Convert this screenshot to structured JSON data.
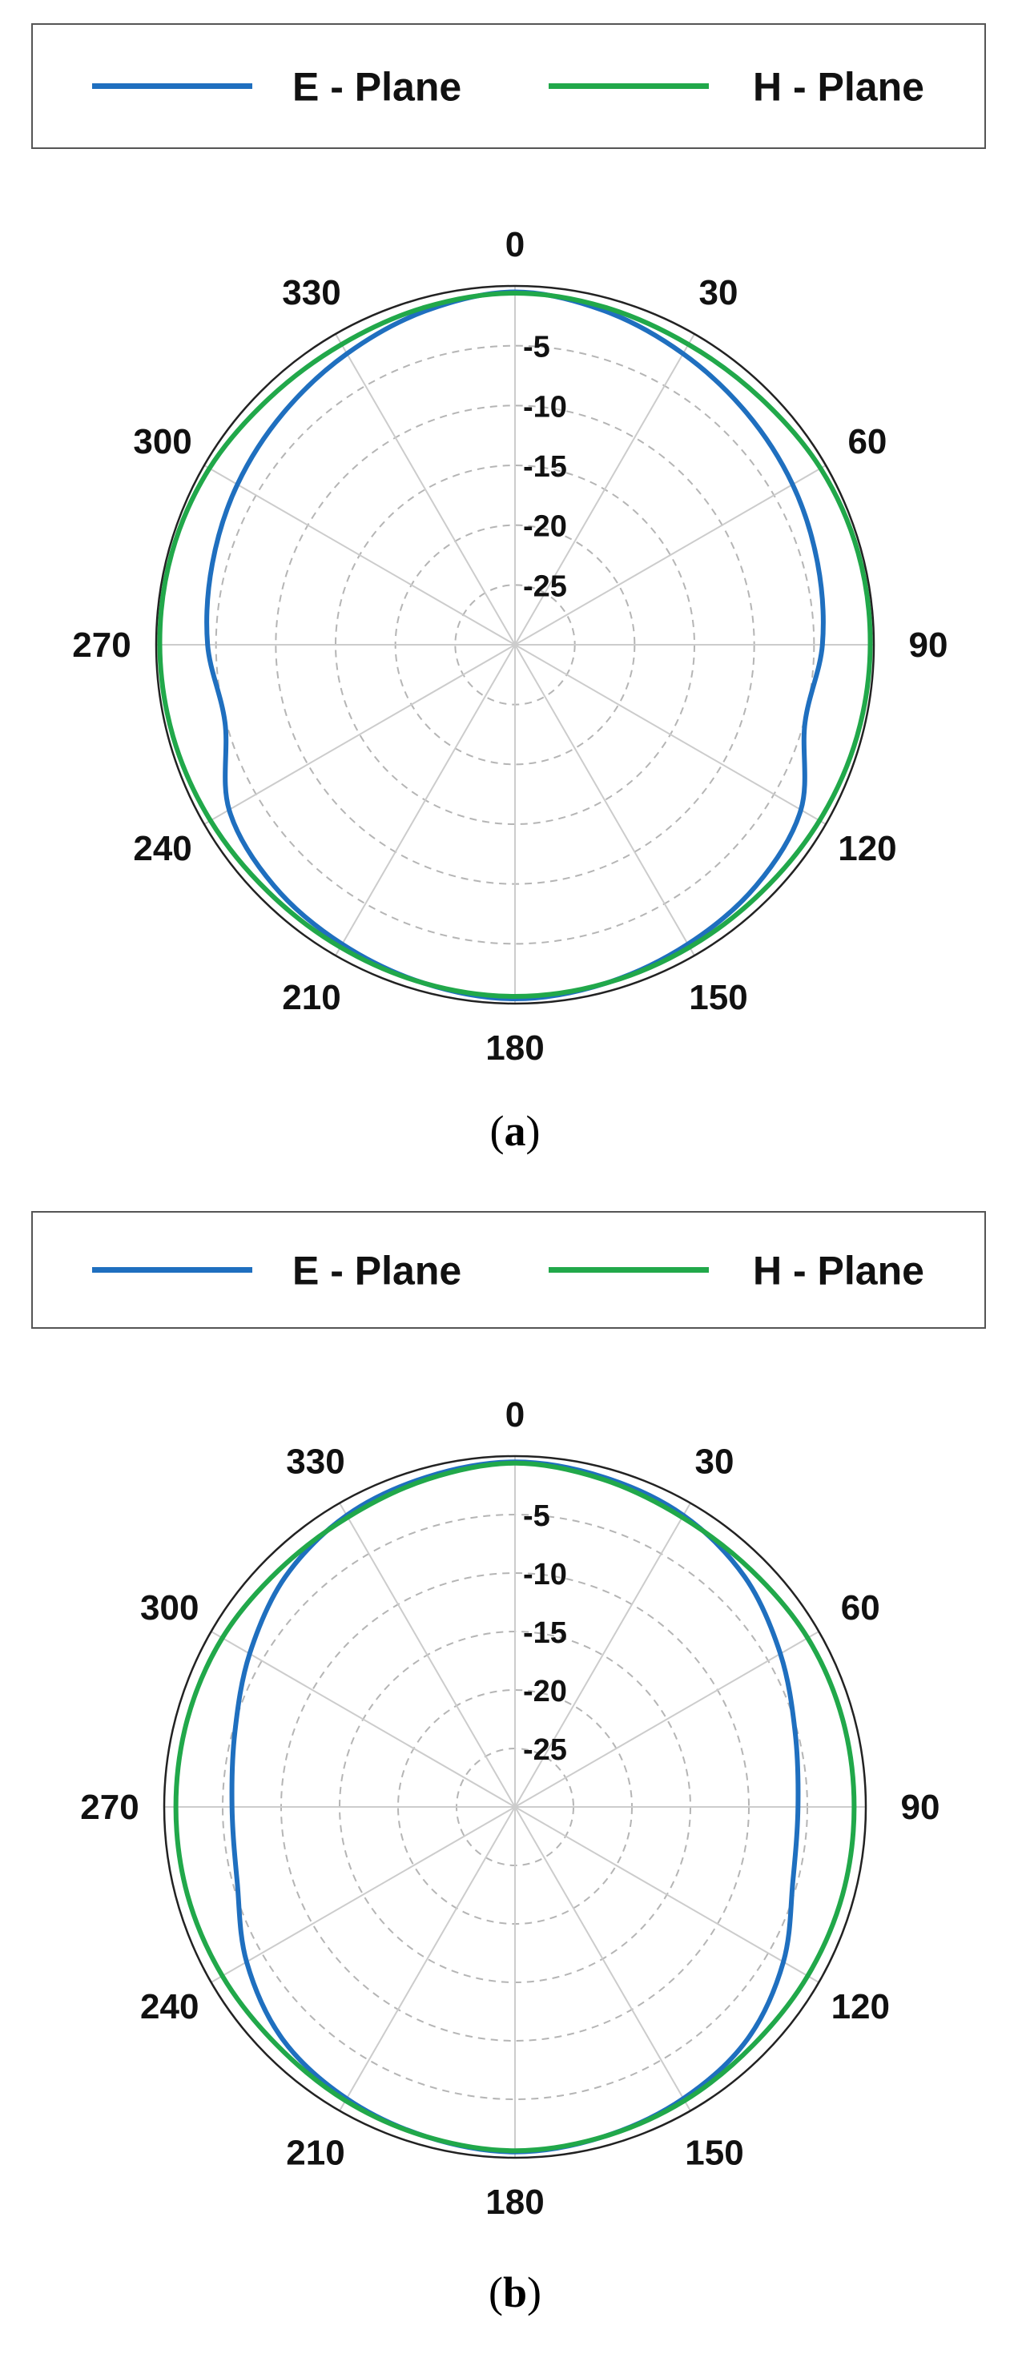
{
  "colors": {
    "e_plane": "#1f6fbf",
    "h_plane": "#21a84a",
    "grid": "#b5b5b5",
    "axis": "#222222",
    "background": "#ffffff"
  },
  "chart_data": [
    {
      "type": "polar",
      "panel_label": "a",
      "theta_unit": "degrees",
      "theta_ticks": [
        "0",
        "30",
        "60",
        "90",
        "120",
        "150",
        "180",
        "210",
        "240",
        "270",
        "300",
        "330"
      ],
      "r_ticks": [
        "-5",
        "-10",
        "-15",
        "-20",
        "-25"
      ],
      "r_range": [
        -30,
        0
      ],
      "direction": "clockwise",
      "zero_location": "top",
      "grid": true,
      "legend_position": "top",
      "series": [
        {
          "name": "E - Plane",
          "color": "#1f6fbf",
          "theta": [
            0,
            15,
            30,
            45,
            60,
            75,
            90,
            105,
            120,
            135,
            150,
            165,
            180,
            195,
            210,
            225,
            240,
            255,
            270,
            285,
            300,
            315,
            330,
            345
          ],
          "r": [
            -0.5,
            -1.1,
            -1.9,
            -2.6,
            -3.2,
            -3.8,
            -4.3,
            -4.9,
            -2.4,
            -1.5,
            -1.1,
            -0.7,
            -0.4,
            -0.7,
            -1.1,
            -1.5,
            -2.4,
            -4.9,
            -4.3,
            -3.8,
            -3.2,
            -2.6,
            -1.9,
            -1.1
          ]
        },
        {
          "name": "H - Plane",
          "color": "#21a84a",
          "theta": [
            0,
            15,
            30,
            45,
            60,
            75,
            90,
            105,
            120,
            135,
            150,
            165,
            180,
            195,
            210,
            225,
            240,
            255,
            270,
            285,
            300,
            315,
            330,
            345
          ],
          "r": [
            -0.6,
            -0.8,
            -1.0,
            -0.9,
            -0.5,
            -0.3,
            -0.3,
            -0.4,
            -0.6,
            -0.8,
            -0.8,
            -0.7,
            -0.6,
            -0.7,
            -0.8,
            -0.8,
            -0.6,
            -0.4,
            -0.3,
            -0.3,
            -0.5,
            -0.9,
            -1.0,
            -0.8
          ]
        }
      ]
    },
    {
      "type": "polar",
      "panel_label": "b",
      "theta_unit": "degrees",
      "theta_ticks": [
        "0",
        "30",
        "60",
        "90",
        "120",
        "150",
        "180",
        "210",
        "240",
        "270",
        "300",
        "330"
      ],
      "r_ticks": [
        "-5",
        "-10",
        "-15",
        "-20",
        "-25"
      ],
      "r_range": [
        -30,
        0
      ],
      "direction": "clockwise",
      "zero_location": "top",
      "grid": true,
      "legend_position": "top",
      "series": [
        {
          "name": "E - Plane",
          "color": "#1f6fbf",
          "theta": [
            0,
            15,
            30,
            45,
            60,
            75,
            90,
            105,
            120,
            135,
            150,
            165,
            180,
            195,
            210,
            225,
            240,
            255,
            270,
            285,
            300,
            315,
            330,
            345
          ],
          "r": [
            -0.5,
            -0.8,
            -1.2,
            -2.2,
            -3.8,
            -5.2,
            -5.8,
            -5.4,
            -3.5,
            -1.9,
            -1.2,
            -0.8,
            -0.5,
            -0.8,
            -1.2,
            -1.9,
            -3.5,
            -5.4,
            -5.8,
            -5.2,
            -3.8,
            -2.2,
            -1.2,
            -0.8
          ]
        },
        {
          "name": "H - Plane",
          "color": "#21a84a",
          "theta": [
            0,
            15,
            30,
            45,
            60,
            75,
            90,
            105,
            120,
            135,
            150,
            165,
            180,
            195,
            210,
            225,
            240,
            255,
            270,
            285,
            300,
            315,
            330,
            345
          ],
          "r": [
            -0.6,
            -1.0,
            -1.4,
            -1.4,
            -1.1,
            -1.0,
            -1.0,
            -1.0,
            -1.1,
            -1.2,
            -1.0,
            -0.8,
            -0.6,
            -0.8,
            -1.0,
            -1.2,
            -1.1,
            -1.0,
            -1.0,
            -1.0,
            -1.1,
            -1.4,
            -1.4,
            -1.0
          ]
        }
      ]
    }
  ]
}
